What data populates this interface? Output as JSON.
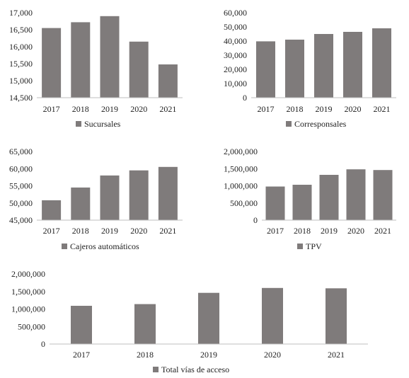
{
  "colors": {
    "bar": "#7f7b7b",
    "axis": "#bfbfbf",
    "text": "#222222"
  },
  "chart_data": [
    {
      "type": "bar",
      "title": "",
      "categories": [
        "2017",
        "2018",
        "2019",
        "2020",
        "2021"
      ],
      "series": [
        {
          "name": "Sucursales",
          "values": [
            16550,
            16720,
            16900,
            16150,
            15480
          ]
        }
      ],
      "ylim": [
        14500,
        17000
      ],
      "yticks": [
        "14,500",
        "15,000",
        "15,500",
        "16,000",
        "16,500",
        "17,000"
      ],
      "legend": "bottom",
      "grid": false
    },
    {
      "type": "bar",
      "title": "",
      "categories": [
        "2017",
        "2018",
        "2019",
        "2020",
        "2021"
      ],
      "series": [
        {
          "name": "Corresponsales",
          "values": [
            39800,
            41000,
            45000,
            46500,
            49000
          ]
        }
      ],
      "ylim": [
        0,
        60000
      ],
      "yticks": [
        "0",
        "10,000",
        "20,000",
        "30,000",
        "40,000",
        "50,000",
        "60,000"
      ],
      "legend": "bottom",
      "grid": false
    },
    {
      "type": "bar",
      "title": "",
      "categories": [
        "2017",
        "2018",
        "2019",
        "2020",
        "2021"
      ],
      "series": [
        {
          "name": "Cajeros automáticos",
          "values": [
            50800,
            54500,
            58000,
            59500,
            60500
          ]
        }
      ],
      "ylim": [
        45000,
        65000
      ],
      "yticks": [
        "45,000",
        "50,000",
        "55,000",
        "60,000",
        "65,000"
      ],
      "legend": "bottom",
      "grid": false
    },
    {
      "type": "bar",
      "title": "",
      "categories": [
        "2017",
        "2018",
        "2019",
        "2020",
        "2021"
      ],
      "series": [
        {
          "name": "TPV",
          "values": [
            980000,
            1030000,
            1320000,
            1480000,
            1460000
          ]
        }
      ],
      "ylim": [
        0,
        2000000
      ],
      "yticks": [
        "0",
        "500,000",
        "1,000,000",
        "1,500,000",
        "2,000,000"
      ],
      "legend": "bottom",
      "grid": false
    },
    {
      "type": "bar",
      "title": "",
      "categories": [
        "2017",
        "2018",
        "2019",
        "2020",
        "2021"
      ],
      "series": [
        {
          "name": "Total vías de acceso",
          "values": [
            1090000,
            1140000,
            1460000,
            1600000,
            1590000
          ]
        }
      ],
      "ylim": [
        0,
        2000000
      ],
      "yticks": [
        "0",
        "500,000",
        "1,000,000",
        "1,500,000",
        "2,000,000"
      ],
      "legend": "bottom",
      "grid": false
    }
  ]
}
